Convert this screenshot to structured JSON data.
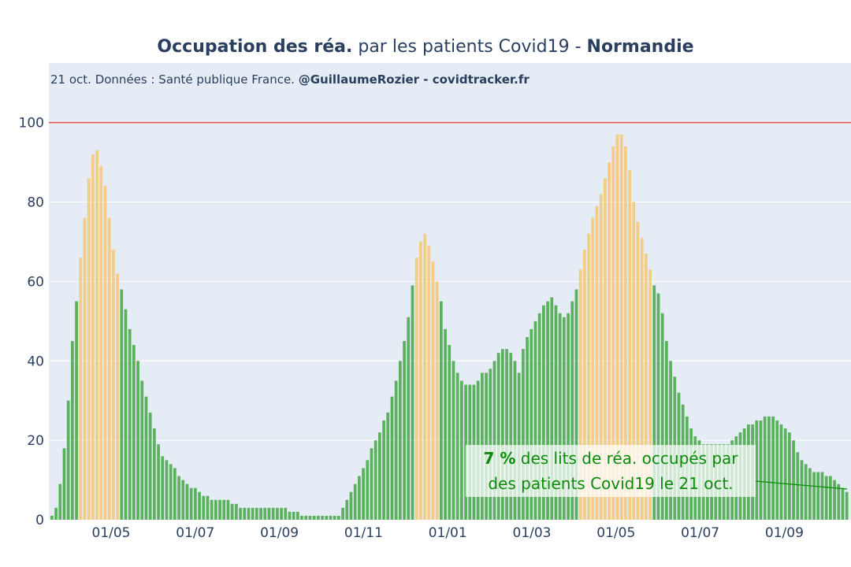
{
  "title": {
    "part1_bold": "Occupation des réa.",
    "part2": " par les patients Covid19 - ",
    "part3_bold": "Normandie"
  },
  "subtitle": {
    "text": "21 oct. Données : Santé publique France. ",
    "bold": "@GuillaumeRozier - covidtracker.fr"
  },
  "annotation": {
    "value": "7  %",
    "line1_rest": " des lits de réa. occupés par",
    "line2": "des patients Covid19 le 21 oct."
  },
  "colors": {
    "plot_bg": "#e5ecf6",
    "grid": "#ffffff",
    "threshold": "#ef4c4c",
    "bar_low": "#39a339",
    "bar_high": "#f6c46a",
    "annotation_text": "#0b8a0b",
    "annotation_line": "#0b8a0b"
  },
  "chart_data": {
    "type": "bar",
    "x_ticks": [
      "01/05",
      "01/07",
      "01/09",
      "01/11",
      "01/01",
      "01/03",
      "01/05",
      "01/07",
      "01/09"
    ],
    "y_ticks": [
      "0",
      "20",
      "40",
      "60",
      "80",
      "100"
    ],
    "ylim": [
      0,
      115
    ],
    "threshold": 100,
    "color_rule": "orange when value >= 60, green otherwise",
    "series": [
      {
        "values": [
          1,
          3,
          9,
          18,
          30,
          45,
          55,
          66,
          76,
          86,
          92,
          93,
          89,
          84,
          76,
          68,
          62,
          58,
          53,
          48,
          44,
          40,
          35,
          31,
          27,
          23,
          19,
          16,
          15,
          14,
          13,
          11,
          10,
          9,
          8,
          8,
          7,
          6,
          6,
          5,
          5,
          5,
          5,
          5,
          4,
          4,
          3,
          3,
          3,
          3,
          3,
          3,
          3,
          3,
          3,
          3,
          3,
          3,
          2,
          2,
          2,
          1,
          1,
          1,
          1,
          1,
          1,
          1,
          1,
          1,
          1,
          3,
          5,
          7,
          9,
          11,
          13,
          15,
          18,
          20,
          22,
          25,
          27,
          31,
          35,
          40,
          45,
          51,
          59,
          66,
          70,
          72,
          69,
          65,
          60,
          55,
          48,
          44,
          40,
          37,
          35,
          34,
          34,
          34,
          35,
          37,
          37,
          38,
          40,
          42,
          43,
          43,
          42,
          40,
          37,
          43,
          46,
          48,
          50,
          52,
          54,
          55,
          56,
          54,
          52,
          51,
          52,
          55,
          58,
          63,
          68,
          72,
          76,
          79,
          82,
          86,
          90,
          94,
          97,
          97,
          94,
          88,
          80,
          75,
          71,
          67,
          63,
          59,
          57,
          52,
          45,
          40,
          36,
          32,
          29,
          26,
          23,
          21,
          20,
          19,
          19,
          19,
          19,
          19,
          19,
          19,
          20,
          21,
          22,
          23,
          24,
          24,
          25,
          25,
          26,
          26,
          26,
          25,
          24,
          23,
          22,
          20,
          17,
          15,
          14,
          13,
          12,
          12,
          12,
          11,
          11,
          10,
          9,
          8,
          7
        ]
      }
    ]
  }
}
